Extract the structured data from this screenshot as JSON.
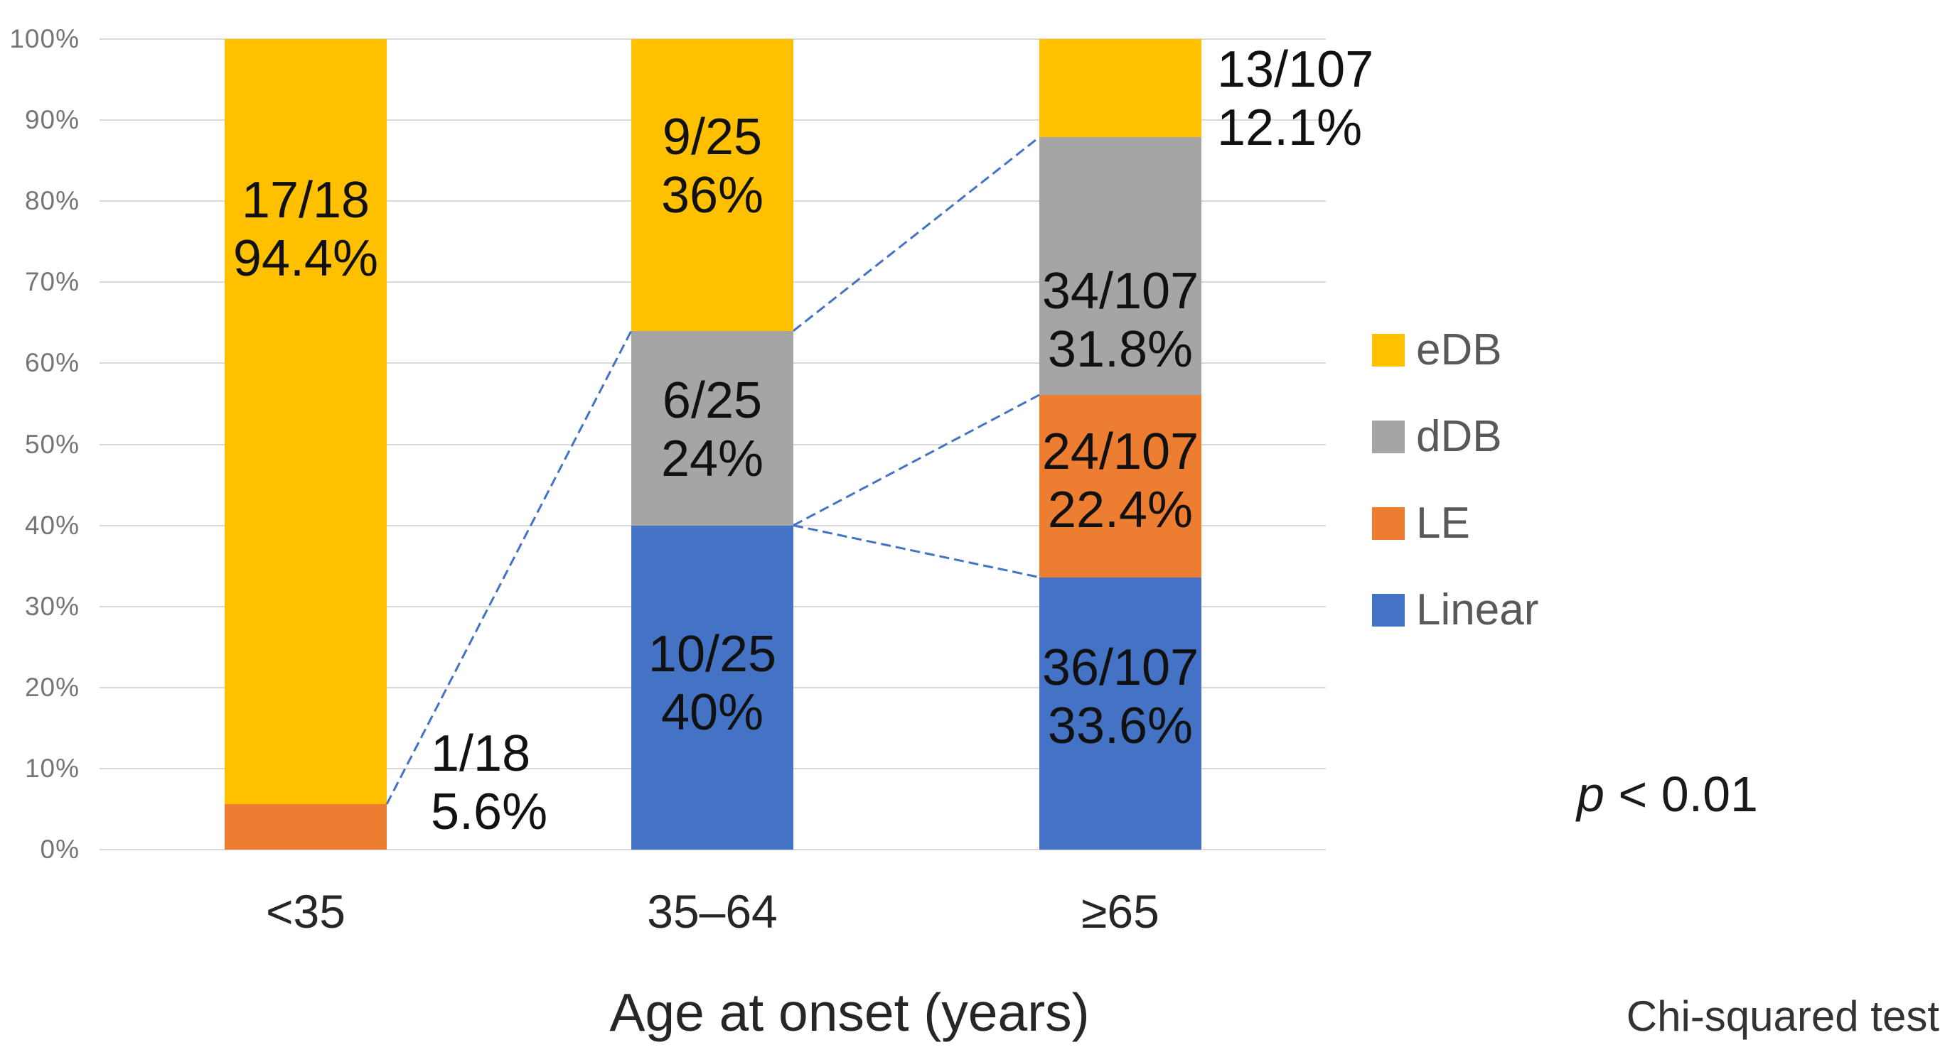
{
  "chart_data": {
    "type": "bar",
    "subtype": "100pct-stacked-column",
    "title": "",
    "xlabel": "Age at onset (years)",
    "ylabel": "",
    "categories": [
      "<35",
      "35–64",
      "≥65"
    ],
    "category_totals": [
      18,
      25,
      107
    ],
    "y_axis": {
      "range": [
        0,
        100
      ],
      "grid": true,
      "ticks": [
        "0%",
        "10%",
        "20%",
        "30%",
        "40%",
        "50%",
        "60%",
        "70%",
        "80%",
        "90%",
        "100%"
      ]
    },
    "gridline_color": "#D9D9D9",
    "tick_label_color": "#757575",
    "colors": {
      "eDB": "#FFC000",
      "dDB": "#A5A5A5",
      "LE": "#ED7D31",
      "Linear": "#4472C4"
    },
    "legend": {
      "position": "right",
      "items": [
        {
          "label": "eDB",
          "color": "#FFC000"
        },
        {
          "label": "dDB",
          "color": "#A5A5A5"
        },
        {
          "label": "LE",
          "color": "#ED7D31"
        },
        {
          "label": "Linear",
          "color": "#4472C4"
        }
      ]
    },
    "series": [
      {
        "name": "eDB",
        "color": "#FFC000",
        "counts": [
          17,
          9,
          13
        ],
        "percents": [
          94.4,
          36,
          12.1
        ]
      },
      {
        "name": "dDB",
        "color": "#A5A5A5",
        "counts": [
          0,
          6,
          34
        ],
        "percents": [
          0,
          24,
          31.8
        ]
      },
      {
        "name": "LE",
        "color": "#ED7D31",
        "counts": [
          1,
          0,
          24
        ],
        "percents": [
          5.6,
          0,
          22.4
        ]
      },
      {
        "name": "Linear",
        "color": "#4472C4",
        "counts": [
          0,
          10,
          36
        ],
        "percents": [
          0,
          40,
          33.6
        ]
      }
    ],
    "bars": [
      {
        "category": "<35",
        "total": 18,
        "segments": [
          {
            "series": "LE",
            "from": 0,
            "to": 5.6,
            "count_label": "1/18",
            "pct_label": "5.6%",
            "label_placement": "right",
            "label_center_pct": 8.2,
            "label_dx": 62
          },
          {
            "series": "eDB",
            "from": 5.6,
            "to": 100,
            "count_label": "17/18",
            "pct_label": "94.4%",
            "label_placement": "inside",
            "label_center_pct": 76.5
          }
        ]
      },
      {
        "category": "35–64",
        "total": 25,
        "segments": [
          {
            "series": "Linear",
            "from": 0,
            "to": 40,
            "count_label": "10/25",
            "pct_label": "40%",
            "label_placement": "inside",
            "label_center_pct": 20.5
          },
          {
            "series": "dDB",
            "from": 40,
            "to": 64,
            "count_label": "6/25",
            "pct_label": "24%",
            "label_placement": "inside",
            "label_center_pct": 51.8
          },
          {
            "series": "eDB",
            "from": 64,
            "to": 100,
            "count_label": "9/25",
            "pct_label": "36%",
            "label_placement": "inside",
            "label_center_pct": 84.3
          }
        ]
      },
      {
        "category": "≥65",
        "total": 107,
        "segments": [
          {
            "series": "Linear",
            "from": 0,
            "to": 33.6,
            "count_label": "36/107",
            "pct_label": "33.6%",
            "label_placement": "inside",
            "label_center_pct": 18.8
          },
          {
            "series": "LE",
            "from": 33.6,
            "to": 56.1,
            "count_label": "24/107",
            "pct_label": "22.4%",
            "label_placement": "inside",
            "label_center_pct": 45.5
          },
          {
            "series": "dDB",
            "from": 56.1,
            "to": 87.9,
            "count_label": "34/107",
            "pct_label": "31.8%",
            "label_placement": "inside",
            "label_center_pct": 65.3
          },
          {
            "series": "eDB",
            "from": 87.9,
            "to": 100,
            "count_label": "13/107",
            "pct_label": "12.1%",
            "label_placement": "right",
            "label_center_pct": 92.6,
            "label_dx": 22
          }
        ]
      }
    ],
    "connectors": {
      "color": "#4472C4",
      "lines": [
        {
          "from_bar": 0,
          "from_pct": 5.6,
          "to_bar": 1,
          "to_pct": 64
        },
        {
          "from_bar": 1,
          "from_pct": 64,
          "to_bar": 2,
          "to_pct": 87.9
        },
        {
          "from_bar": 1,
          "from_pct": 40,
          "to_bar": 2,
          "to_pct": 56.1
        },
        {
          "from_bar": 1,
          "from_pct": 40,
          "to_bar": 2,
          "to_pct": 33.6
        }
      ]
    }
  },
  "annotations": {
    "p_var": "p",
    "p_rest": " < 0.01",
    "test_name": "Chi-squared test"
  }
}
